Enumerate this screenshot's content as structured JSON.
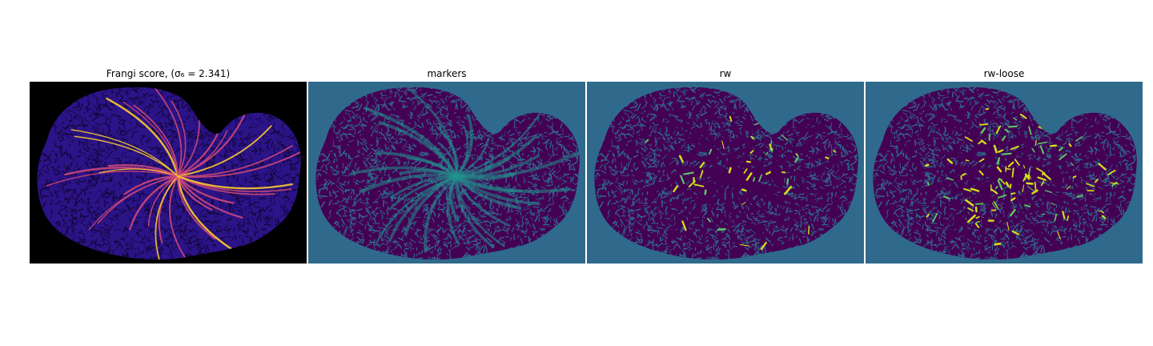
{
  "figure": {
    "panels": [
      {
        "title": "Frangi score, (σ₆ = 2.341)",
        "kind": "frangi",
        "colormap": "plasma",
        "background": "#000000"
      },
      {
        "title": "markers",
        "kind": "markers",
        "colormap": "viridis",
        "background": "#2f6a8c"
      },
      {
        "title": "rw",
        "kind": "rw",
        "colormap": "viridis",
        "background": "#2f6a8c"
      },
      {
        "title": "rw-loose",
        "kind": "rw-loose",
        "colormap": "viridis",
        "background": "#2f6a8c"
      }
    ]
  },
  "colors": {
    "tissue_dark": "#440154",
    "tissue_purple_blue": "#2b1388",
    "vessel_bright": "#f9c833",
    "vessel_magenta": "#cc4778",
    "marker_teal": "#21918c",
    "label_yellow": "#d7e219",
    "label_green": "#5ec962"
  }
}
